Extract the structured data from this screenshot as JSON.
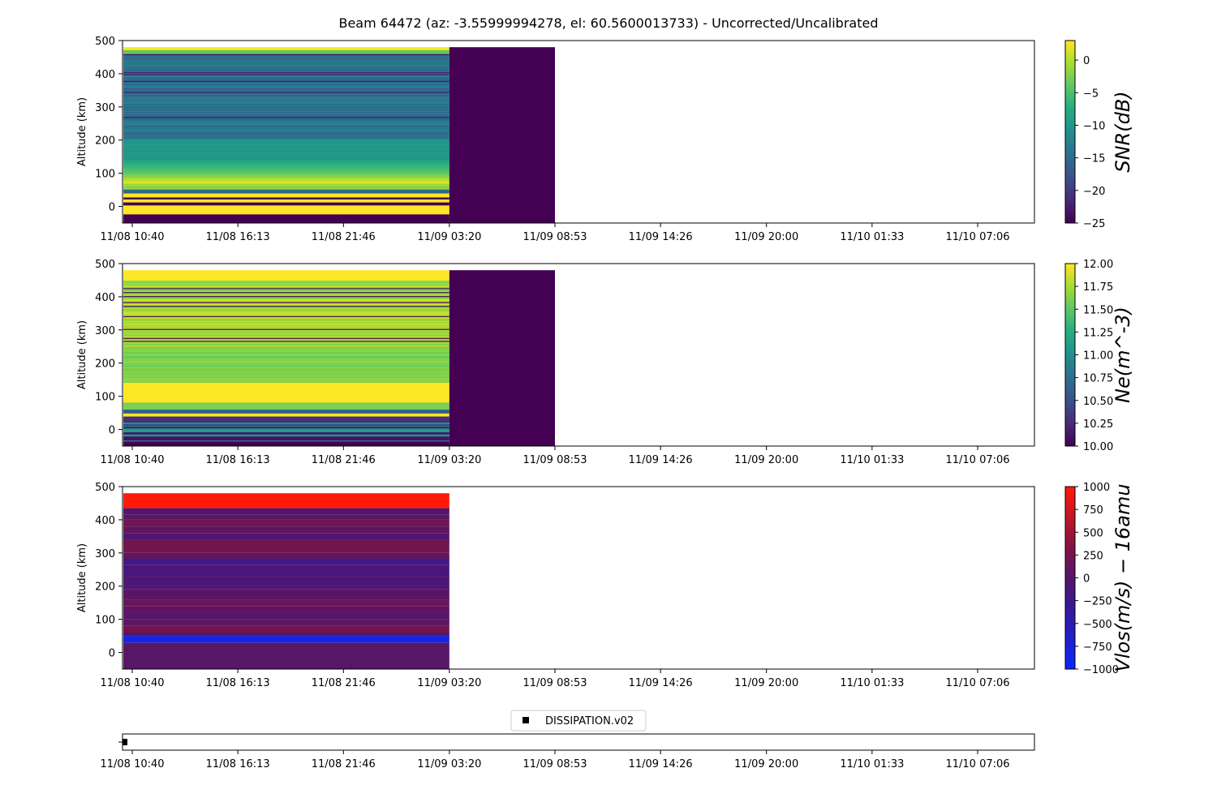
{
  "title": "Beam 64472 (az: -3.55999994278, el: 60.5600013733) - Uncorrected/Uncalibrated",
  "x_ticks": [
    "11/08 10:40",
    "11/08 16:13",
    "11/08 21:46",
    "11/09 03:20",
    "11/09 08:53",
    "11/09 14:26",
    "11/09 20:00",
    "11/10 01:33",
    "11/10 07:06"
  ],
  "chart_data": [
    {
      "type": "heatmap",
      "id": "snr",
      "ylabel": "Altitude (km)",
      "ylim": [
        -50,
        500
      ],
      "y_ticks": [
        0,
        100,
        200,
        300,
        400,
        500
      ],
      "x_ticks": [
        "11/08 10:40",
        "11/08 16:13",
        "11/08 21:46",
        "11/09 03:20",
        "11/09 08:53",
        "11/09 14:26",
        "11/09 20:00",
        "11/10 01:33",
        "11/10 07:06"
      ],
      "colorbar": {
        "label": "SNR(dB)",
        "colormap": "viridis",
        "min": -25,
        "max": 3,
        "ticks": [
          "0",
          "−5",
          "−10",
          "−15",
          "−20",
          "−25"
        ],
        "tick_values": [
          0,
          -5,
          -10,
          -15,
          -20,
          -25
        ]
      },
      "blocks": [
        {
          "x_start": "11/08 10:12",
          "x_end": "11/09 03:20",
          "y_bottom": -50,
          "y_top": 480,
          "profile": "snr"
        },
        {
          "x_start": "11/09 03:20",
          "x_end": "11/09 08:53",
          "y_bottom": -50,
          "y_top": 480,
          "fill_value": -25
        }
      ]
    },
    {
      "type": "heatmap",
      "id": "ne",
      "ylabel": "Altitude (km)",
      "ylim": [
        -50,
        500
      ],
      "y_ticks": [
        0,
        100,
        200,
        300,
        400,
        500
      ],
      "x_ticks": [
        "11/08 10:40",
        "11/08 16:13",
        "11/08 21:46",
        "11/09 03:20",
        "11/09 08:53",
        "11/09 14:26",
        "11/09 20:00",
        "11/10 01:33",
        "11/10 07:06"
      ],
      "colorbar": {
        "label": "Ne(m^-3)",
        "colormap": "viridis",
        "min": 10,
        "max": 12,
        "ticks": [
          "12.00",
          "11.75",
          "11.50",
          "11.25",
          "11.00",
          "10.75",
          "10.50",
          "10.25",
          "10.00"
        ],
        "tick_values": [
          12,
          11.75,
          11.5,
          11.25,
          11,
          10.75,
          10.5,
          10.25,
          10
        ]
      },
      "blocks": [
        {
          "x_start": "11/08 10:12",
          "x_end": "11/09 03:20",
          "y_bottom": -50,
          "y_top": 480,
          "profile": "ne"
        },
        {
          "x_start": "11/09 03:20",
          "x_end": "11/09 08:53",
          "y_bottom": -50,
          "y_top": 480,
          "fill_value": 10
        }
      ]
    },
    {
      "type": "heatmap",
      "id": "vlos",
      "ylabel": "Altitude (km)",
      "ylim": [
        -50,
        500
      ],
      "y_ticks": [
        0,
        100,
        200,
        300,
        400,
        500
      ],
      "x_ticks": [
        "11/08 10:40",
        "11/08 16:13",
        "11/08 21:46",
        "11/09 03:20",
        "11/09 08:53",
        "11/09 14:26",
        "11/09 20:00",
        "11/10 01:33",
        "11/10 07:06"
      ],
      "colorbar": {
        "label": "Vlos(m/s) − 16amu",
        "colormap": "blue-red",
        "min": -1000,
        "max": 1000,
        "ticks": [
          "1000",
          "750",
          "500",
          "250",
          "0",
          "−250",
          "−500",
          "−750",
          "−1000"
        ],
        "tick_values": [
          1000,
          750,
          500,
          250,
          0,
          -250,
          -500,
          -750,
          -1000
        ]
      },
      "blocks": [
        {
          "x_start": "11/08 10:12",
          "x_end": "11/09 03:20",
          "y_bottom": -50,
          "y_top": 480,
          "profile": "vlos"
        }
      ]
    },
    {
      "type": "scatter",
      "id": "dissipation",
      "x_ticks": [
        "11/08 10:40",
        "11/08 16:13",
        "11/08 21:46",
        "11/09 03:20",
        "11/09 08:53",
        "11/09 14:26",
        "11/09 20:00",
        "11/10 01:33",
        "11/10 07:06"
      ],
      "legend": "DISSIPATION.v02",
      "legend_placement": "top-center",
      "points": [
        {
          "x": "11/08 10:17",
          "y": 0
        }
      ],
      "marker_color": "#000000"
    }
  ]
}
